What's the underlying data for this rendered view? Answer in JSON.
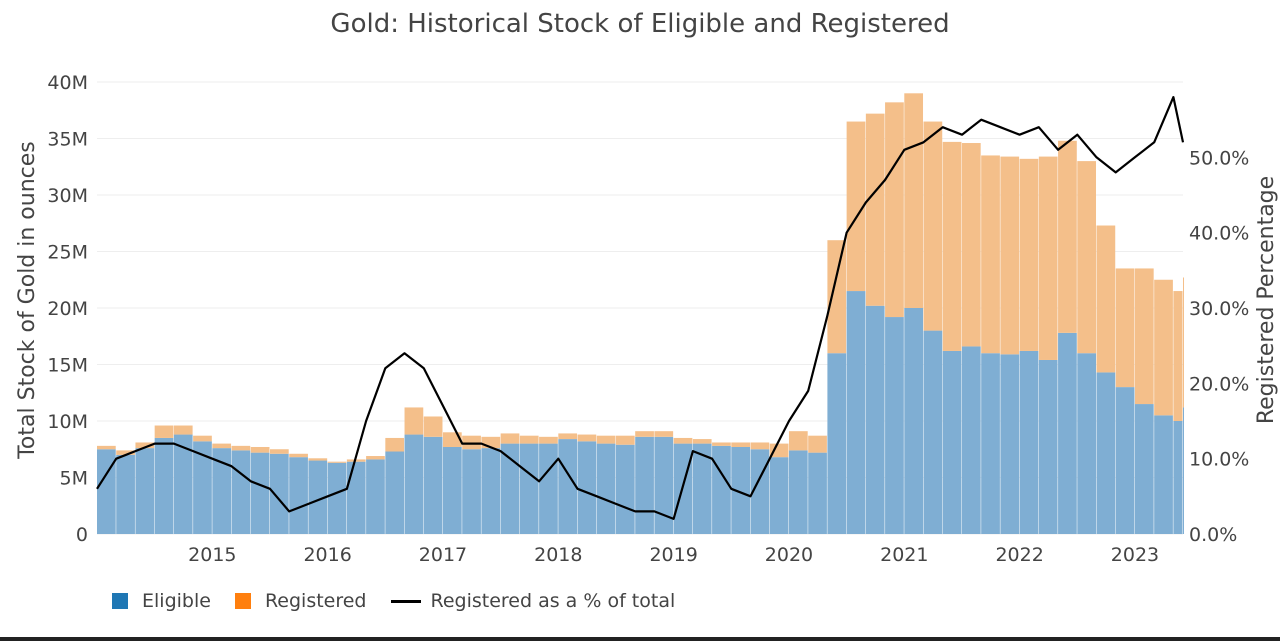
{
  "chart_data": {
    "type": "bar",
    "title": "Gold: Historical Stock of Eligible and Registered",
    "ylabel": "Total Stock of Gold in ounces",
    "y2label": "Registered Percentage",
    "x_tick_labels": [
      "2015",
      "2016",
      "2017",
      "2018",
      "2019",
      "2020",
      "2021",
      "2022",
      "2023"
    ],
    "xlim": [
      "2014-01",
      "2023-06"
    ],
    "y_tick_labels": [
      "0",
      "5M",
      "10M",
      "15M",
      "20M",
      "25M",
      "30M",
      "35M",
      "40M"
    ],
    "ylim": [
      0,
      40000000
    ],
    "y2_tick_labels": [
      "0.0%",
      "10.0%",
      "20.0%",
      "30.0%",
      "40.0%",
      "50.0%"
    ],
    "y2lim": [
      0,
      0.6
    ],
    "grid": true,
    "legend_position": "bottom",
    "stacked": true,
    "x": [
      "2014-01",
      "2014-03",
      "2014-05",
      "2014-07",
      "2014-09",
      "2014-11",
      "2015-01",
      "2015-03",
      "2015-05",
      "2015-07",
      "2015-09",
      "2015-11",
      "2016-01",
      "2016-03",
      "2016-05",
      "2016-07",
      "2016-09",
      "2016-11",
      "2017-01",
      "2017-03",
      "2017-05",
      "2017-07",
      "2017-09",
      "2017-11",
      "2018-01",
      "2018-03",
      "2018-05",
      "2018-07",
      "2018-09",
      "2018-11",
      "2019-01",
      "2019-03",
      "2019-05",
      "2019-07",
      "2019-09",
      "2019-11",
      "2020-01",
      "2020-03",
      "2020-05",
      "2020-07",
      "2020-09",
      "2020-11",
      "2021-01",
      "2021-03",
      "2021-05",
      "2021-07",
      "2021-09",
      "2021-11",
      "2022-01",
      "2022-03",
      "2022-05",
      "2022-07",
      "2022-09",
      "2022-11",
      "2023-01",
      "2023-03",
      "2023-05",
      "2023-06"
    ],
    "series": [
      {
        "name": "Eligible",
        "color": "#1f77b4",
        "values": [
          7.5,
          7.0,
          7.6,
          8.5,
          8.8,
          8.2,
          7.6,
          7.4,
          7.2,
          7.1,
          6.8,
          6.5,
          6.3,
          6.4,
          6.6,
          7.3,
          8.8,
          8.6,
          7.7,
          7.5,
          7.6,
          8.0,
          8.0,
          8.0,
          8.4,
          8.2,
          8.0,
          7.9,
          8.6,
          8.6,
          8.0,
          8.0,
          7.8,
          7.7,
          7.5,
          6.8,
          7.4,
          7.2,
          16.0,
          21.5,
          20.2,
          19.2,
          20.0,
          18.0,
          16.2,
          16.6,
          16.0,
          15.9,
          16.2,
          15.4,
          17.8,
          16.0,
          14.3,
          13.0,
          11.5,
          10.5,
          10.0,
          11.2
        ]
      },
      {
        "name": "Registered",
        "color": "#ff7f0e",
        "values": [
          0.3,
          0.4,
          0.5,
          1.1,
          0.8,
          0.5,
          0.4,
          0.4,
          0.5,
          0.4,
          0.3,
          0.2,
          0.1,
          0.2,
          0.3,
          1.2,
          2.4,
          1.8,
          1.3,
          1.2,
          1.0,
          0.9,
          0.7,
          0.6,
          0.5,
          0.6,
          0.7,
          0.8,
          0.5,
          0.5,
          0.5,
          0.4,
          0.3,
          0.4,
          0.6,
          1.2,
          1.7,
          1.5,
          10.0,
          15.0,
          17.0,
          19.0,
          19.0,
          18.5,
          18.5,
          18.0,
          17.5,
          17.5,
          17.0,
          18.0,
          17.0,
          17.0,
          13.0,
          10.5,
          12.0,
          12.0,
          11.5,
          11.5
        ]
      },
      {
        "name": "Registered as a % of total",
        "color": "#000000",
        "values": [
          0.06,
          0.1,
          0.11,
          0.12,
          0.12,
          0.11,
          0.1,
          0.09,
          0.07,
          0.06,
          0.03,
          0.04,
          0.05,
          0.06,
          0.15,
          0.22,
          0.24,
          0.22,
          0.17,
          0.12,
          0.12,
          0.11,
          0.09,
          0.07,
          0.1,
          0.06,
          0.05,
          0.04,
          0.03,
          0.03,
          0.02,
          0.11,
          0.1,
          0.06,
          0.05,
          0.1,
          0.15,
          0.19,
          0.29,
          0.4,
          0.44,
          0.47,
          0.51,
          0.52,
          0.54,
          0.53,
          0.55,
          0.54,
          0.53,
          0.54,
          0.51,
          0.53,
          0.5,
          0.48,
          0.5,
          0.52,
          0.58,
          0.52
        ]
      }
    ]
  }
}
